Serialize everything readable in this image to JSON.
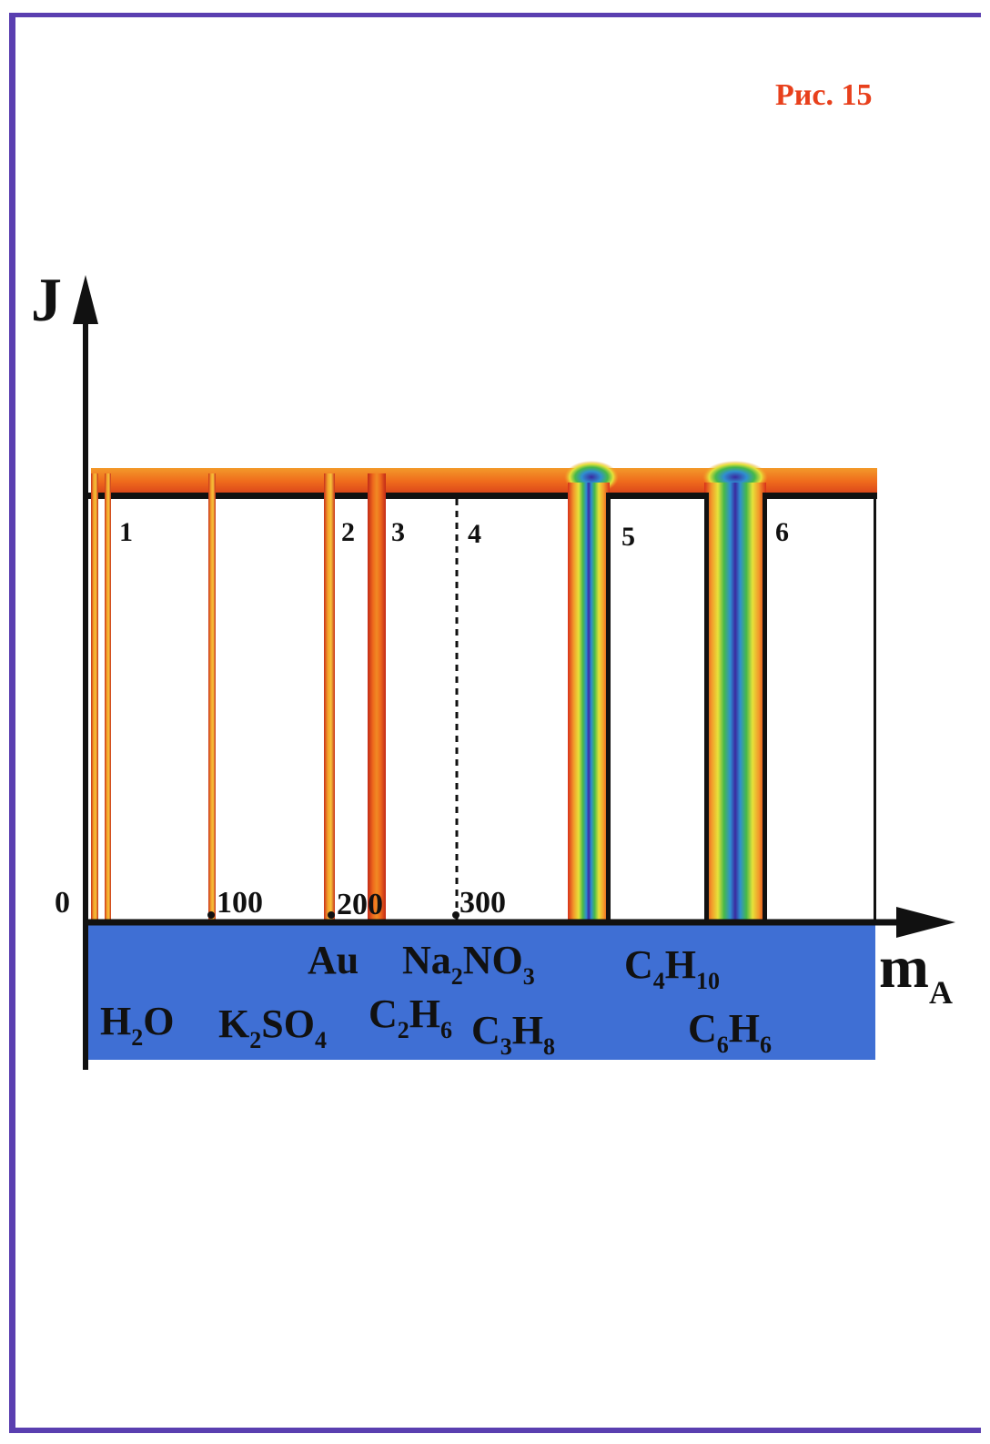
{
  "figure_label": "Рис. 15",
  "axes": {
    "y_label": "J",
    "x_label_main": "m",
    "x_label_sub": "A"
  },
  "ticks": [
    "0",
    "100",
    "200",
    "300"
  ],
  "region_numbers": [
    "1",
    "2",
    "3",
    "4",
    "5",
    "6"
  ],
  "substances": {
    "h2o": {
      "a": "H",
      "s1": "2",
      "b": "O"
    },
    "k2so4": {
      "a": "K",
      "s1": "2",
      "b": "SO",
      "s2": "4"
    },
    "au": {
      "a": "Au"
    },
    "c2h6": {
      "a": "C",
      "s1": "2",
      "b": "H",
      "s2": "6"
    },
    "na2no3": {
      "a": "Na",
      "s1": "2",
      "b": "NO",
      "s2": "3"
    },
    "c3h8": {
      "a": "C",
      "s1": "3",
      "b": "H",
      "s2": "8"
    },
    "c4h10": {
      "a": "C",
      "s1": "4",
      "b": "H",
      "s2": "10"
    },
    "c6h6": {
      "a": "C",
      "s1": "6",
      "b": "H",
      "s2": "6"
    }
  },
  "colors": {
    "frame": "#5a3fb0",
    "figure_label": "#e8401c",
    "band_blue": "#3f6fd4",
    "heat_orange": "#f07a1e",
    "heat_red": "#d8301a",
    "heat_yellow": "#f6c23a"
  }
}
